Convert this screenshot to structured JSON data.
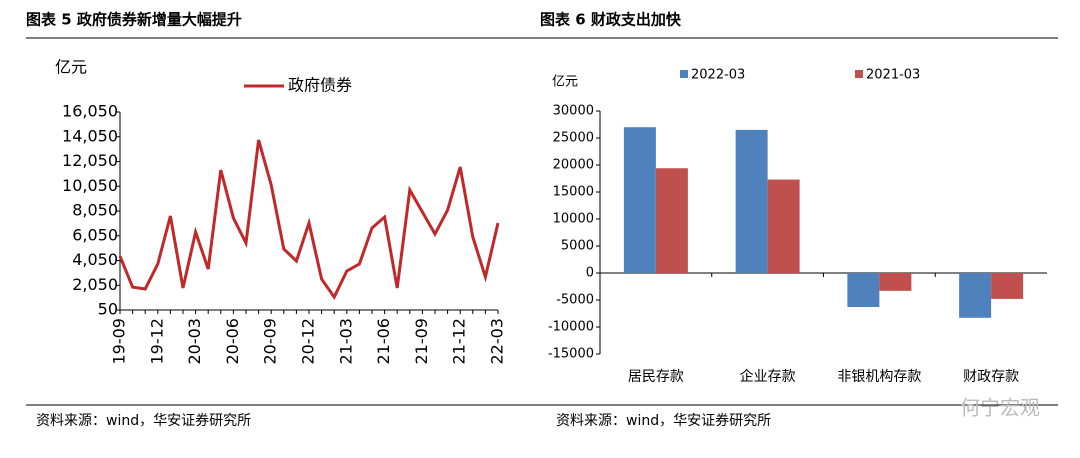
{
  "watermark": "何宁宏观",
  "chart_data": [
    {
      "type": "line",
      "title": "图表 5 政府债券新增量大幅提升",
      "y_label": "亿元",
      "source": "资料来源：wind，华安证券研究所",
      "categories": [
        "19-09",
        null,
        null,
        "19-12",
        null,
        null,
        "20-03",
        null,
        null,
        "20-06",
        null,
        null,
        "20-09",
        null,
        null,
        "20-12",
        null,
        null,
        "21-03",
        null,
        null,
        "21-06",
        null,
        null,
        "21-09",
        null,
        null,
        "21-12",
        null,
        null,
        "22-03"
      ],
      "series": [
        {
          "name": "政府债券",
          "color": "#c0282a",
          "values": [
            4400,
            1900,
            1750,
            3770,
            7650,
            1830,
            6350,
            3360,
            11360,
            7480,
            5460,
            13790,
            10150,
            4980,
            4010,
            7080,
            2550,
            1100,
            3200,
            3770,
            6680,
            7560,
            1830,
            9750,
            7970,
            6190,
            8130,
            11600,
            5950,
            2720,
            7080
          ]
        }
      ],
      "ylim": [
        50,
        16050
      ],
      "yticks": [
        50,
        {
          "value": 2050,
          "label": "2,050"
        },
        {
          "value": 4050,
          "label": "4,050"
        },
        {
          "value": 6050,
          "label": "6,050"
        },
        {
          "value": 8050,
          "label": "8,050"
        },
        {
          "value": 10050,
          "label": "10,050"
        },
        {
          "value": 12050,
          "label": "12,050"
        },
        {
          "value": 14050,
          "label": "14,050"
        },
        {
          "value": 16050,
          "label": "16,050"
        }
      ],
      "legend": "top"
    },
    {
      "type": "bar",
      "title": "图表 6 财政支出加快",
      "y_label": "亿元",
      "source": "资料来源：wind，华安证券研究所",
      "categories": [
        "居民存款",
        "企业存款",
        "非银机构存款",
        "财政存款"
      ],
      "series": [
        {
          "name": "2022-03",
          "color": "#4f81bd",
          "values": [
            27000,
            26500,
            -6300,
            -8300
          ]
        },
        {
          "name": "2021-03",
          "color": "#c0504d",
          "values": [
            19400,
            17300,
            -3300,
            -4800
          ]
        }
      ],
      "ylim": [
        -15000,
        30000
      ],
      "yticks": [
        -15000,
        -10000,
        -5000,
        0,
        5000,
        10000,
        15000,
        20000,
        25000,
        30000
      ],
      "legend": "top"
    }
  ]
}
